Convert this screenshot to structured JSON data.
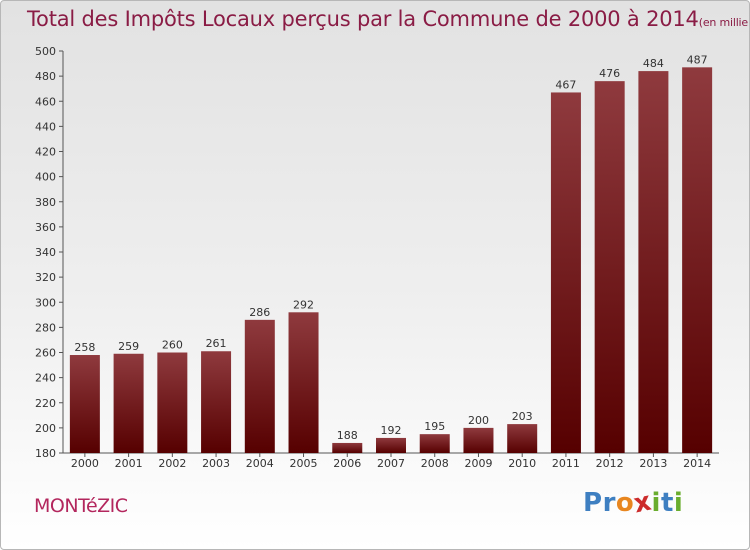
{
  "title": "Total des Impôts Locaux perçus par la Commune de 2000 à 2014",
  "unit": "(en milliers d'€)",
  "commune": "MONTéZIC",
  "logo": {
    "letters": [
      "P",
      "r",
      "o",
      "x",
      "i",
      "t",
      "i"
    ],
    "colors": [
      "#3e7fc1",
      "#3e7fc1",
      "#e8861f",
      "#cc2c2c",
      "#6aad2e",
      "#3e7fc1",
      "#6aad2e"
    ]
  },
  "colors": {
    "title": "#8a1c45",
    "bar_top": "#8f3a3e",
    "bar_bottom": "#560000"
  },
  "chart_data": {
    "type": "bar",
    "categories": [
      "2000",
      "2001",
      "2002",
      "2003",
      "2004",
      "2005",
      "2006",
      "2007",
      "2008",
      "2009",
      "2010",
      "2011",
      "2012",
      "2013",
      "2014"
    ],
    "values": [
      258,
      259,
      260,
      261,
      286,
      292,
      188,
      192,
      195,
      200,
      203,
      467,
      476,
      484,
      487
    ],
    "ylim": [
      180,
      500
    ],
    "yticks": [
      180,
      200,
      220,
      240,
      260,
      280,
      300,
      320,
      340,
      360,
      380,
      400,
      420,
      440,
      460,
      480,
      500
    ],
    "grid": false
  }
}
